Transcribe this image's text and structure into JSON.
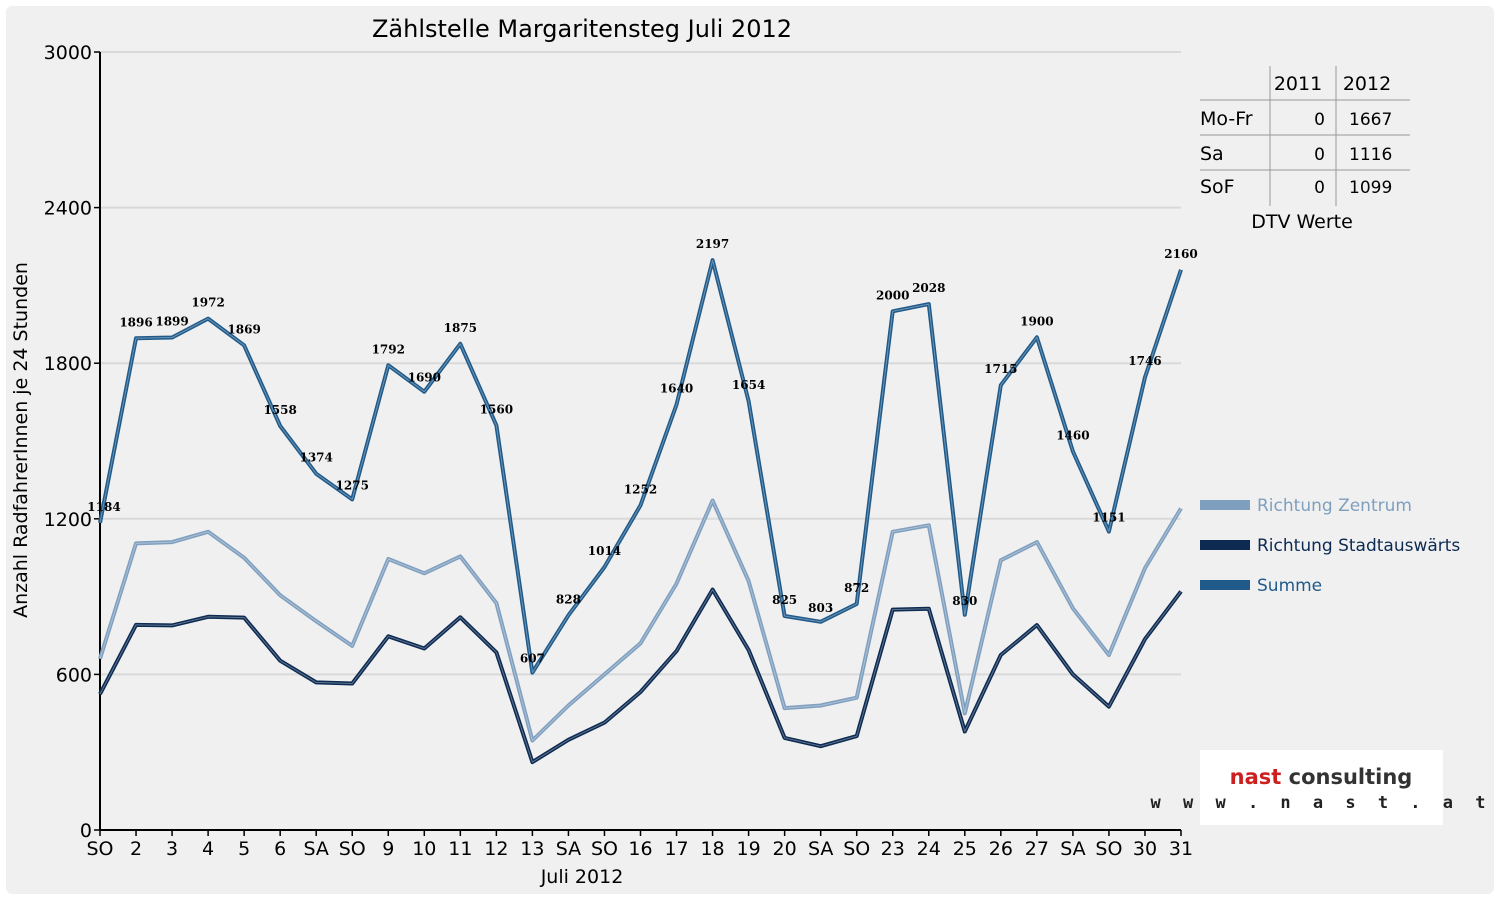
{
  "chart_data": {
    "type": "line",
    "title": "Zählstelle Margaritensteg Juli 2012",
    "xlabel": "Juli 2012",
    "ylabel": "Anzahl RadfahrerInnen je 24 Stunden",
    "ylim": [
      0,
      3000
    ],
    "yticks": [
      0,
      600,
      1200,
      1800,
      2400,
      3000
    ],
    "categories": [
      "SO",
      "2",
      "3",
      "4",
      "5",
      "6",
      "SA",
      "SO",
      "9",
      "10",
      "11",
      "12",
      "13",
      "SA",
      "SO",
      "16",
      "17",
      "18",
      "19",
      "20",
      "SA",
      "SO",
      "23",
      "24",
      "25",
      "26",
      "27",
      "SA",
      "SO",
      "30",
      "31"
    ],
    "sunday_indices": [
      0,
      7,
      14,
      21,
      28
    ],
    "grid": "horizontal",
    "legend_position": "right",
    "series": [
      {
        "name": "Richtung Zentrum",
        "color": "#7f9fbf",
        "values": [
          660,
          1105,
          1110,
          1150,
          1050,
          905,
          805,
          710,
          1045,
          990,
          1055,
          875,
          345,
          480,
          600,
          720,
          950,
          1270,
          960,
          470,
          480,
          510,
          1150,
          1175,
          450,
          1040,
          1110,
          855,
          675,
          1010,
          1240
        ]
      },
      {
        "name": "Richtung Stadtauswärts",
        "color": "#0c2a52",
        "values": [
          524,
          791,
          789,
          822,
          819,
          653,
          569,
          565,
          747,
          700,
          820,
          685,
          262,
          348,
          414,
          532,
          690,
          927,
          694,
          355,
          323,
          362,
          850,
          853,
          380,
          675,
          790,
          600,
          476,
          736,
          920
        ]
      },
      {
        "name": "Summe",
        "color": "#1f5a8a",
        "labeled": true,
        "values": [
          1184,
          1896,
          1899,
          1972,
          1869,
          1558,
          1374,
          1275,
          1792,
          1690,
          1875,
          1560,
          607,
          828,
          1014,
          1252,
          1640,
          2197,
          1654,
          825,
          803,
          872,
          2000,
          2028,
          830,
          1715,
          1900,
          1460,
          1151,
          1746,
          2160
        ]
      }
    ]
  },
  "table": {
    "caption": "DTV Werte",
    "columns": [
      "2011",
      "2012"
    ],
    "rows": [
      {
        "label": "Mo-Fr",
        "v2011": "0",
        "v2012": "1667"
      },
      {
        "label": "Sa",
        "v2011": "0",
        "v2012": "1116"
      },
      {
        "label": "SoF",
        "v2011": "0",
        "v2012": "1099"
      }
    ]
  },
  "logo": {
    "text_red": "nast",
    "text_dark": "consulting",
    "url": "w w w . n a s t . a t"
  },
  "colors": {
    "sunday_label": "#ff0000",
    "grid": "#d9d9d9",
    "logo_red": "#cc1f1f",
    "logo_dark": "#333333"
  }
}
